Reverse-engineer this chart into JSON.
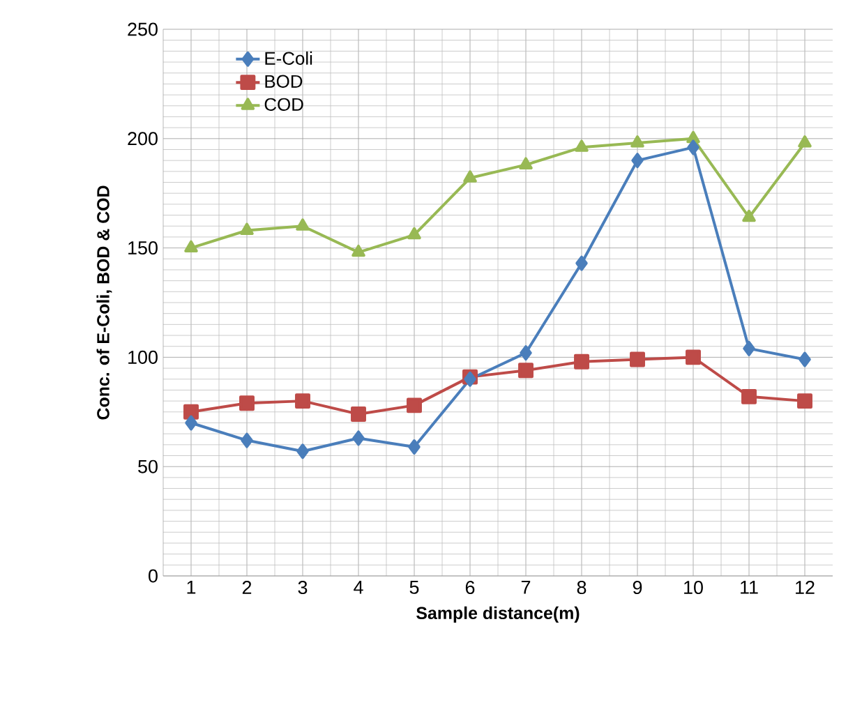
{
  "chart_data": {
    "type": "line",
    "xlabel": "Sample distance(m)",
    "ylabel": "Conc. of E-Coli, BOD & COD",
    "categories": [
      "1",
      "2",
      "3",
      "4",
      "5",
      "6",
      "7",
      "8",
      "9",
      "10",
      "11",
      "12"
    ],
    "series": [
      {
        "name": "E-Coli",
        "color": "#4a7ebb",
        "marker": "diamond",
        "values": [
          70,
          62,
          57,
          63,
          59,
          90,
          102,
          143,
          190,
          196,
          104,
          99
        ]
      },
      {
        "name": "BOD",
        "color": "#be4b48",
        "marker": "square",
        "values": [
          75,
          79,
          80,
          74,
          78,
          91,
          94,
          98,
          99,
          100,
          82,
          80
        ]
      },
      {
        "name": "COD",
        "color": "#98b954",
        "marker": "triangle",
        "values": [
          150,
          158,
          160,
          148,
          156,
          182,
          188,
          196,
          198,
          200,
          164,
          198
        ]
      }
    ],
    "ylim": [
      0,
      250
    ],
    "yticks": [
      0,
      50,
      100,
      150,
      200,
      250
    ],
    "grid": true,
    "legend": "top left",
    "line_style": "solid"
  }
}
